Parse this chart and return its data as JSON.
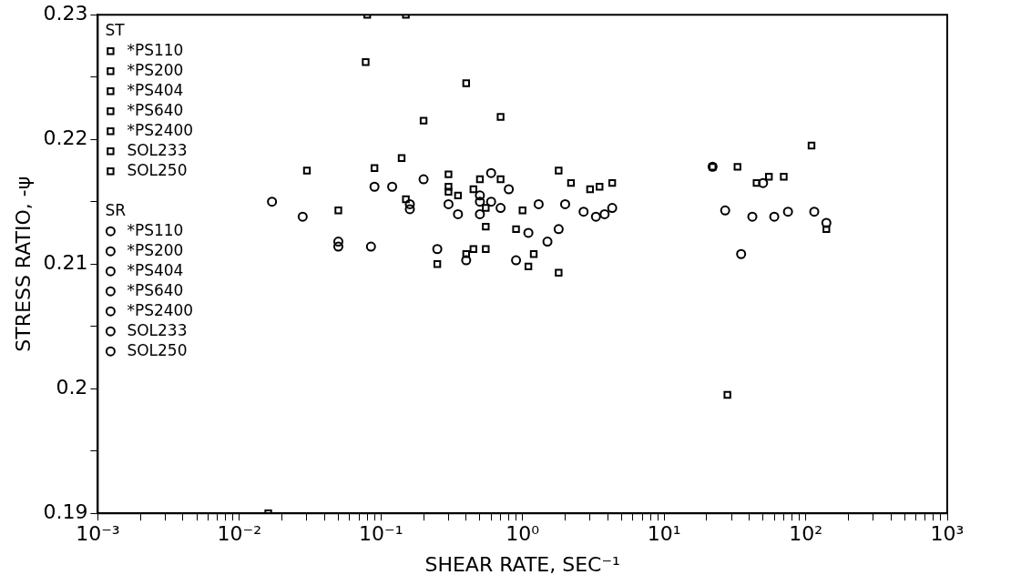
{
  "chart_data": {
    "type": "scatter",
    "xlabel": "SHEAR RATE, SEC⁻¹",
    "ylabel": "STRESS RATIO, -ψ",
    "log": "x",
    "grid": false,
    "legend": "top left",
    "annotations": [
      "ST",
      "SR"
    ],
    "xlim": [
      0.001,
      1000
    ],
    "ylim": [
      0.19,
      0.23
    ],
    "xticks": [
      {
        "value": 0.001,
        "label": "10⁻³"
      },
      {
        "value": 0.002,
        "label": null
      },
      {
        "value": 0.003,
        "label": null
      },
      {
        "value": 0.004,
        "label": null
      },
      {
        "value": 0.005,
        "label": null
      },
      {
        "value": 0.006,
        "label": null
      },
      {
        "value": 0.007,
        "label": null
      },
      {
        "value": 0.008,
        "label": null
      },
      {
        "value": 0.009,
        "label": null
      },
      {
        "value": 0.01,
        "label": "10⁻²"
      },
      {
        "value": 0.02,
        "label": null
      },
      {
        "value": 0.03,
        "label": null
      },
      {
        "value": 0.04,
        "label": null
      },
      {
        "value": 0.05,
        "label": null
      },
      {
        "value": 0.06,
        "label": null
      },
      {
        "value": 0.07,
        "label": null
      },
      {
        "value": 0.08,
        "label": null
      },
      {
        "value": 0.09,
        "label": null
      },
      {
        "value": 0.1,
        "label": "10⁻¹"
      },
      {
        "value": 0.2,
        "label": null
      },
      {
        "value": 0.3,
        "label": null
      },
      {
        "value": 0.4,
        "label": null
      },
      {
        "value": 0.5,
        "label": null
      },
      {
        "value": 0.6,
        "label": null
      },
      {
        "value": 0.7,
        "label": null
      },
      {
        "value": 0.8,
        "label": null
      },
      {
        "value": 0.9,
        "label": null
      },
      {
        "value": 1,
        "label": "10⁰"
      },
      {
        "value": 2,
        "label": null
      },
      {
        "value": 3,
        "label": null
      },
      {
        "value": 4,
        "label": null
      },
      {
        "value": 5,
        "label": null
      },
      {
        "value": 6,
        "label": null
      },
      {
        "value": 7,
        "label": null
      },
      {
        "value": 8,
        "label": null
      },
      {
        "value": 9,
        "label": null
      },
      {
        "value": 10,
        "label": "10¹"
      },
      {
        "value": 20,
        "label": null
      },
      {
        "value": 30,
        "label": null
      },
      {
        "value": 40,
        "label": null
      },
      {
        "value": 50,
        "label": null
      },
      {
        "value": 60,
        "label": null
      },
      {
        "value": 70,
        "label": null
      },
      {
        "value": 80,
        "label": null
      },
      {
        "value": 90,
        "label": null
      },
      {
        "value": 100,
        "label": "10²"
      },
      {
        "value": 200,
        "label": null
      },
      {
        "value": 300,
        "label": null
      },
      {
        "value": 400,
        "label": null
      },
      {
        "value": 500,
        "label": null
      },
      {
        "value": 600,
        "label": null
      },
      {
        "value": 700,
        "label": null
      },
      {
        "value": 800,
        "label": null
      },
      {
        "value": 900,
        "label": null
      },
      {
        "value": 1000,
        "label": "10³"
      }
    ],
    "yticks": [
      0.19,
      {
        "value": 0.195,
        "label": null
      },
      0.2,
      {
        "value": 0.205,
        "label": null
      },
      0.21,
      {
        "value": 0.215,
        "label": null
      },
      0.22,
      {
        "value": 0.225,
        "label": null
      },
      0.23
    ],
    "series": [
      {
        "name": "*PS110",
        "color": "#000000",
        "marker": "square",
        "x": [
          0.3,
          0.3,
          0.45,
          0.55,
          0.55,
          0.55
        ],
        "values": [
          0.2162,
          0.2158,
          0.2112,
          0.2112,
          0.2145,
          0.213
        ]
      },
      {
        "name": "*PS200",
        "color": "#000000",
        "marker": "square",
        "x": [
          22,
          33,
          45,
          55,
          70,
          110,
          140,
          28
        ],
        "values": [
          0.2178,
          0.2178,
          0.2165,
          0.217,
          0.217,
          0.2195,
          0.2128,
          0.1995
        ]
      },
      {
        "name": "*PS404",
        "color": "#000000",
        "marker": "square",
        "x": [
          0.25,
          0.7,
          1.8,
          1.0
        ],
        "values": [
          0.21,
          0.2168,
          0.2175,
          0.2143
        ]
      },
      {
        "name": "*PS640",
        "color": "#000000",
        "marker": "square",
        "x": [
          0.9,
          1.2,
          1.8,
          1.1
        ],
        "values": [
          0.2128,
          0.2108,
          0.2093,
          0.2098
        ]
      },
      {
        "name": "*PS2400",
        "color": "#000000",
        "marker": "square",
        "x": [
          0.4,
          0.45,
          0.35,
          0.15
        ],
        "values": [
          0.2108,
          0.216,
          0.2155,
          0.23
        ]
      },
      {
        "name": "SOL233",
        "color": "#000000",
        "marker": "square",
        "x": [
          0.2,
          0.4,
          0.7,
          0.3,
          0.5,
          2.2,
          3,
          3.5,
          4.3
        ],
        "values": [
          0.2215,
          0.2245,
          0.2218,
          0.2172,
          0.2168,
          0.2165,
          0.216,
          0.2162,
          0.2165
        ]
      },
      {
        "name": "SOL250",
        "color": "#000000",
        "marker": "square",
        "x": [
          0.03,
          0.05,
          0.09,
          0.078,
          0.14,
          0.15,
          0.016,
          0.08
        ],
        "values": [
          0.2175,
          0.2143,
          0.2177,
          0.2262,
          0.2185,
          0.2152,
          0.19,
          0.23
        ]
      },
      {
        "name": "*PS110",
        "color": "#000000",
        "marker": "circle",
        "x": [
          0.25,
          0.3,
          0.5,
          0.5
        ],
        "values": [
          0.2112,
          0.2148,
          0.2155,
          0.214
        ]
      },
      {
        "name": "*PS200",
        "color": "#000000",
        "marker": "circle",
        "x": [
          22,
          27,
          42,
          60,
          75,
          115,
          140,
          35,
          50
        ],
        "values": [
          0.2178,
          0.2143,
          0.2138,
          0.2138,
          0.2142,
          0.2142,
          0.2133,
          0.2108,
          0.2165
        ]
      },
      {
        "name": "*PS404",
        "color": "#000000",
        "marker": "circle",
        "x": [
          0.35,
          0.5,
          0.7
        ],
        "values": [
          0.214,
          0.215,
          0.2145
        ]
      },
      {
        "name": "*PS640",
        "color": "#000000",
        "marker": "circle",
        "x": [
          0.9,
          1.1,
          1.5,
          1.8,
          1.3
        ],
        "values": [
          0.2103,
          0.2125,
          0.2118,
          0.2128,
          0.2148
        ]
      },
      {
        "name": "*PS2400",
        "color": "#000000",
        "marker": "circle",
        "x": [
          0.4,
          0.6,
          0.8
        ],
        "values": [
          0.2103,
          0.215,
          0.216
        ]
      },
      {
        "name": "SOL233",
        "color": "#000000",
        "marker": "circle",
        "x": [
          0.2,
          0.12,
          0.6,
          2.0,
          2.7,
          3.3,
          3.8,
          4.3
        ],
        "values": [
          0.2168,
          0.2162,
          0.2173,
          0.2148,
          0.2142,
          0.2138,
          0.214,
          0.2145
        ]
      },
      {
        "name": "SOL250",
        "color": "#000000",
        "marker": "circle",
        "x": [
          0.017,
          0.028,
          0.05,
          0.05,
          0.085,
          0.09,
          0.16,
          0.16
        ],
        "values": [
          0.215,
          0.2138,
          0.2118,
          0.2114,
          0.2114,
          0.2162,
          0.2148,
          0.2144
        ]
      }
    ]
  }
}
